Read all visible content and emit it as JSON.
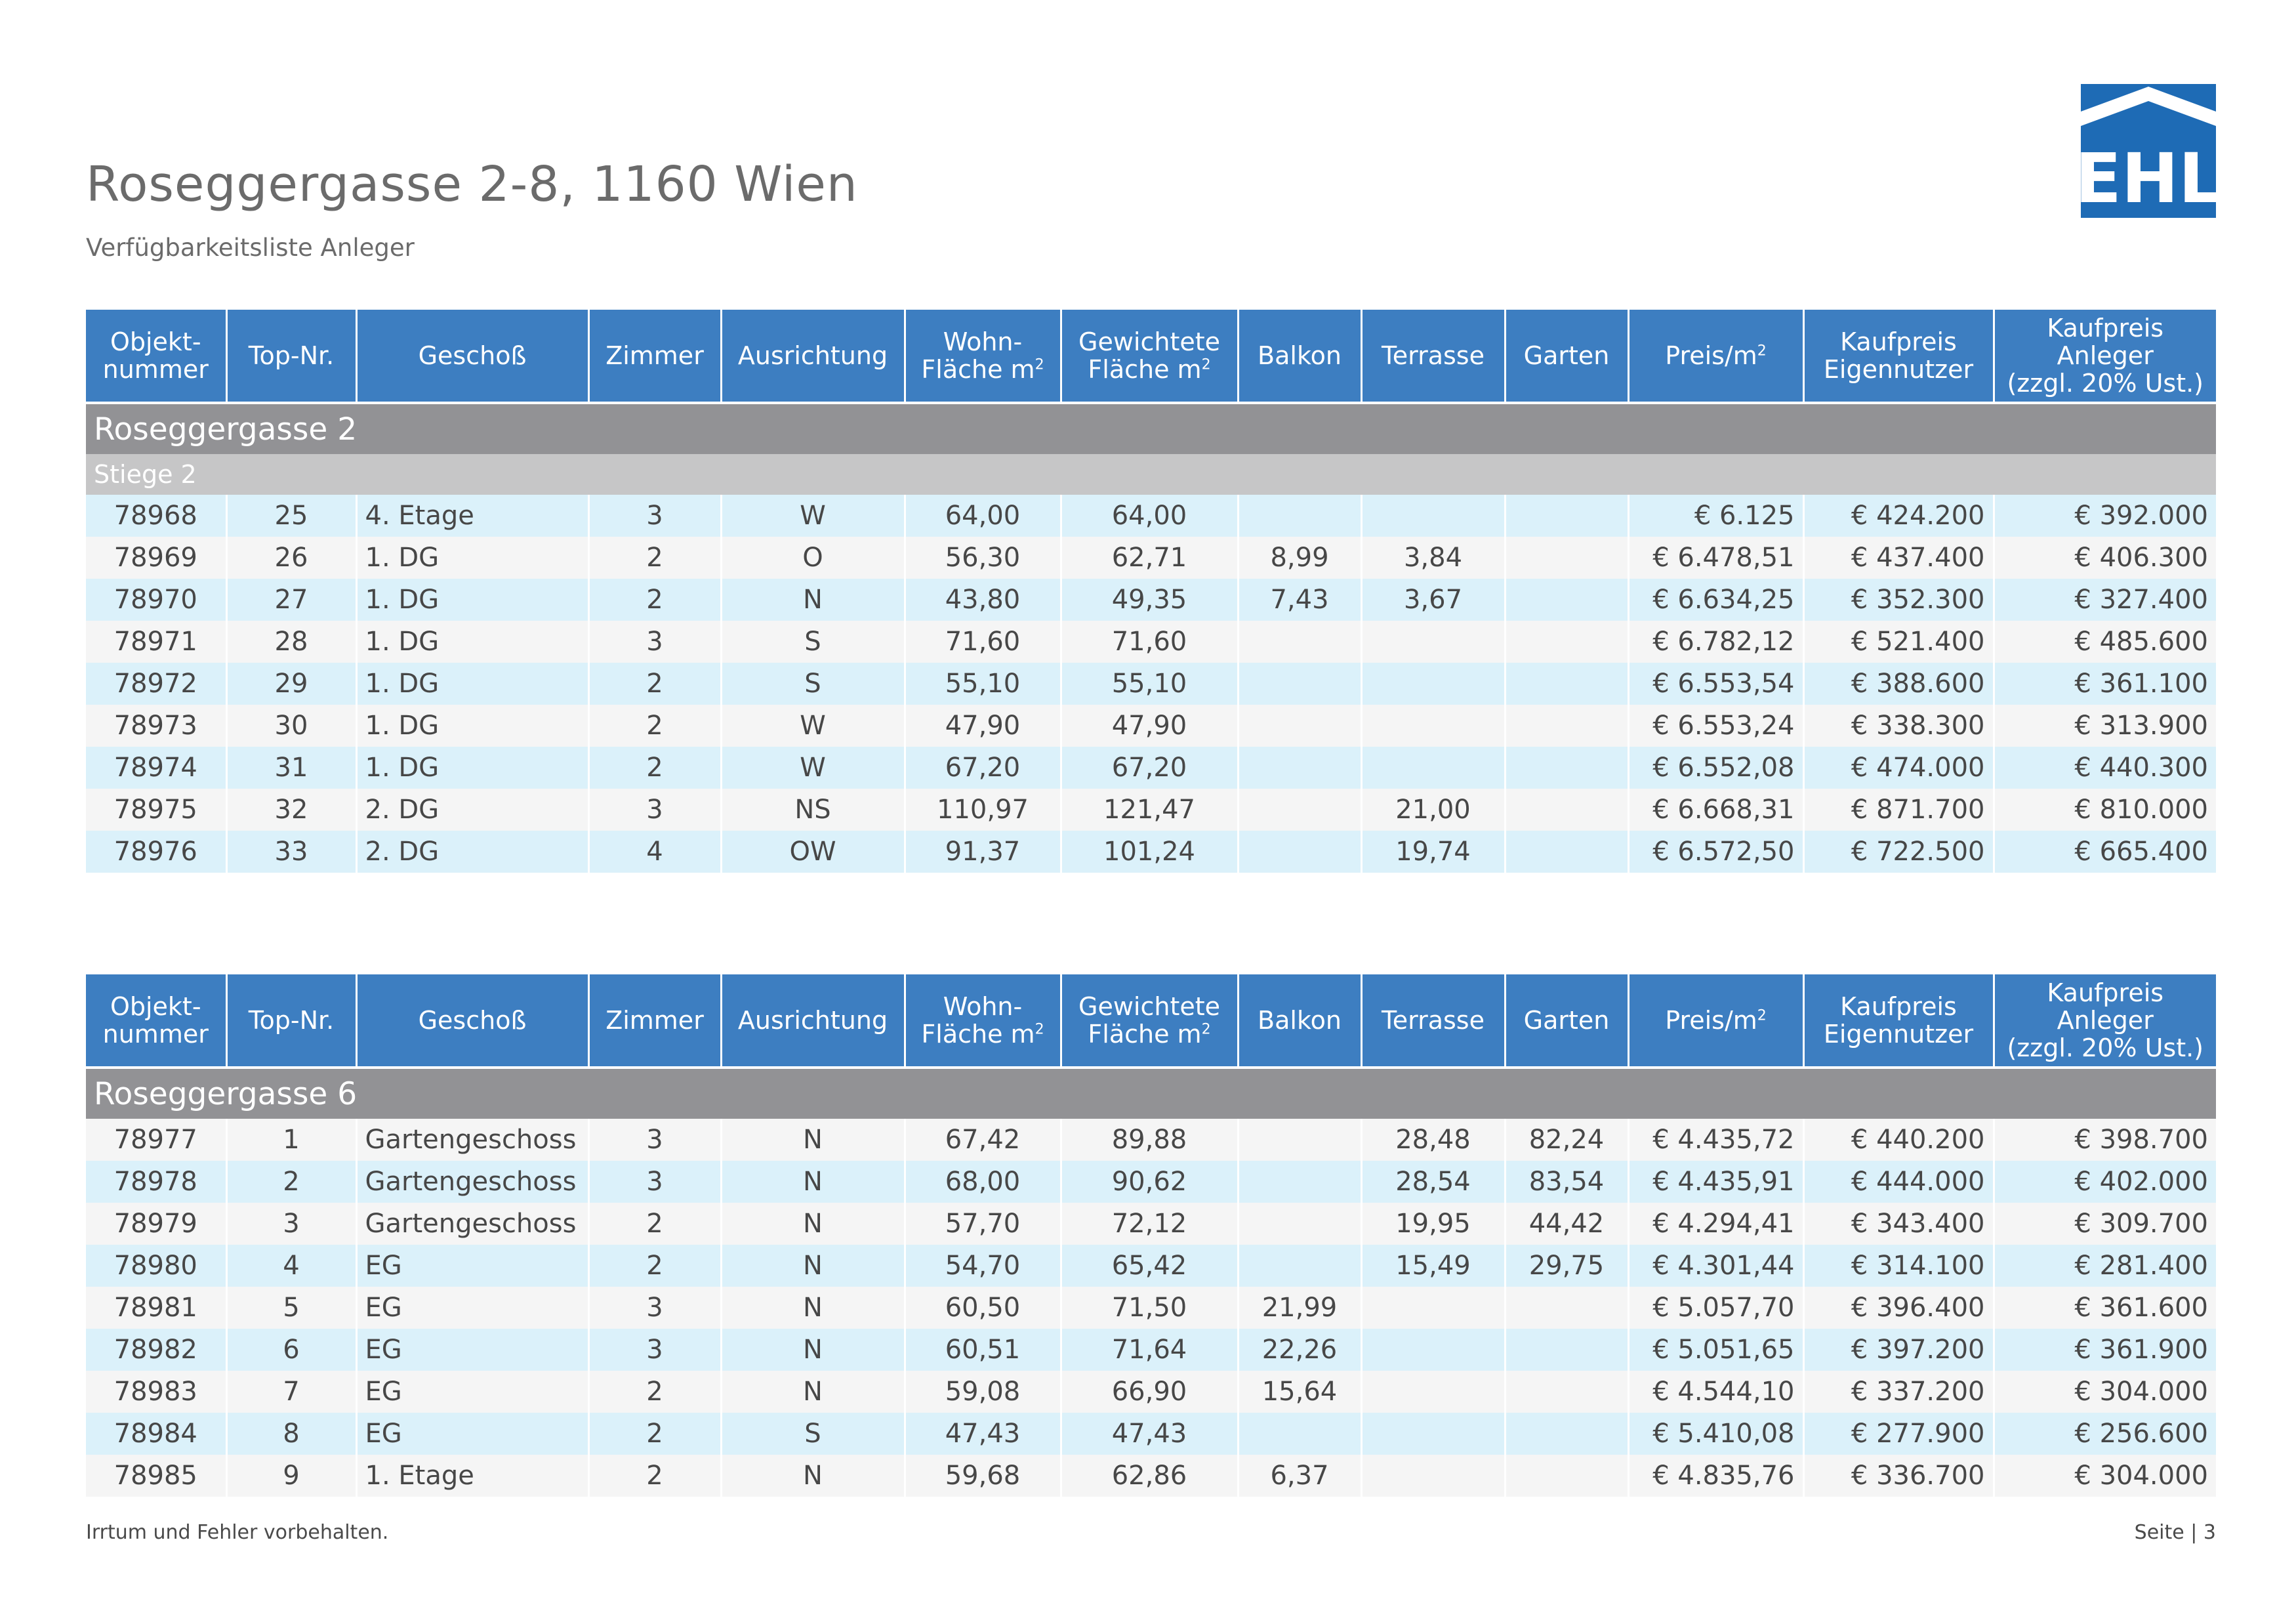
{
  "document": {
    "title": "Roseggergasse 2-8, 1160 Wien",
    "subtitle": "Verfügbarkeitsliste Anleger",
    "logo_text": "EHL",
    "brand_color": "#1e6bb5",
    "header_color": "#3d7ec1",
    "footer_note": "Irrtum und Fehler vorbehalten.",
    "page_label": "Seite | 3"
  },
  "columns": {
    "objekt_1": "Objekt-",
    "objekt_2": "nummer",
    "top": "Top-Nr.",
    "geschoss": "Geschoß",
    "zimmer": "Zimmer",
    "ausrichtung": "Ausrichtung",
    "wohn_1": "Wohn-",
    "wohn_2": "Fläche m",
    "gew_1": "Gewichtete",
    "gew_2": "Fläche m",
    "sq": "2",
    "balkon": "Balkon",
    "terrasse": "Terrasse",
    "garten": "Garten",
    "preis": "Preis/m",
    "kaufpreis_e1": "Kaufpreis",
    "kaufpreis_e2": "Eigennutzer",
    "kaufpreis_a1": "Kaufpreis",
    "kaufpreis_a2": "Anleger",
    "kaufpreis_a3": "(zzgl. 20% Ust.)"
  },
  "tables": [
    {
      "house": "Roseggergasse 2",
      "stair": "Stiege 2",
      "rows": [
        [
          "78968",
          "25",
          "4. Etage",
          "3",
          "W",
          "64,00",
          "64,00",
          "",
          "",
          "",
          "€ 6.125",
          "€ 424.200",
          "€ 392.000"
        ],
        [
          "78969",
          "26",
          "1. DG",
          "2",
          "O",
          "56,30",
          "62,71",
          "8,99",
          "3,84",
          "",
          "€ 6.478,51",
          "€ 437.400",
          "€ 406.300"
        ],
        [
          "78970",
          "27",
          "1. DG",
          "2",
          "N",
          "43,80",
          "49,35",
          "7,43",
          "3,67",
          "",
          "€ 6.634,25",
          "€ 352.300",
          "€ 327.400"
        ],
        [
          "78971",
          "28",
          "1. DG",
          "3",
          "S",
          "71,60",
          "71,60",
          "",
          "",
          "",
          "€ 6.782,12",
          "€ 521.400",
          "€ 485.600"
        ],
        [
          "78972",
          "29",
          "1. DG",
          "2",
          "S",
          "55,10",
          "55,10",
          "",
          "",
          "",
          "€ 6.553,54",
          "€ 388.600",
          "€ 361.100"
        ],
        [
          "78973",
          "30",
          "1. DG",
          "2",
          "W",
          "47,90",
          "47,90",
          "",
          "",
          "",
          "€ 6.553,24",
          "€ 338.300",
          "€ 313.900"
        ],
        [
          "78974",
          "31",
          "1. DG",
          "2",
          "W",
          "67,20",
          "67,20",
          "",
          "",
          "",
          "€ 6.552,08",
          "€ 474.000",
          "€ 440.300"
        ],
        [
          "78975",
          "32",
          "2. DG",
          "3",
          "NS",
          "110,97",
          "121,47",
          "",
          "21,00",
          "",
          "€ 6.668,31",
          "€ 871.700",
          "€ 810.000"
        ],
        [
          "78976",
          "33",
          "2. DG",
          "4",
          "OW",
          "91,37",
          "101,24",
          "",
          "19,74",
          "",
          "€ 6.572,50",
          "€ 722.500",
          "€ 665.400"
        ]
      ]
    },
    {
      "house": "Roseggergasse 6",
      "stair": "",
      "rows": [
        [
          "78977",
          "1",
          "Gartengeschoss",
          "3",
          "N",
          "67,42",
          "89,88",
          "",
          "28,48",
          "82,24",
          "€ 4.435,72",
          "€ 440.200",
          "€ 398.700"
        ],
        [
          "78978",
          "2",
          "Gartengeschoss",
          "3",
          "N",
          "68,00",
          "90,62",
          "",
          "28,54",
          "83,54",
          "€ 4.435,91",
          "€ 444.000",
          "€ 402.000"
        ],
        [
          "78979",
          "3",
          "Gartengeschoss",
          "2",
          "N",
          "57,70",
          "72,12",
          "",
          "19,95",
          "44,42",
          "€ 4.294,41",
          "€ 343.400",
          "€ 309.700"
        ],
        [
          "78980",
          "4",
          "EG",
          "2",
          "N",
          "54,70",
          "65,42",
          "",
          "15,49",
          "29,75",
          "€ 4.301,44",
          "€ 314.100",
          "€ 281.400"
        ],
        [
          "78981",
          "5",
          "EG",
          "3",
          "N",
          "60,50",
          "71,50",
          "21,99",
          "",
          "",
          "€ 5.057,70",
          "€ 396.400",
          "€ 361.600"
        ],
        [
          "78982",
          "6",
          "EG",
          "3",
          "N",
          "60,51",
          "71,64",
          "22,26",
          "",
          "",
          "€ 5.051,65",
          "€ 397.200",
          "€ 361.900"
        ],
        [
          "78983",
          "7",
          "EG",
          "2",
          "N",
          "59,08",
          "66,90",
          "15,64",
          "",
          "",
          "€ 4.544,10",
          "€ 337.200",
          "€ 304.000"
        ],
        [
          "78984",
          "8",
          "EG",
          "2",
          "S",
          "47,43",
          "47,43",
          "",
          "",
          "",
          "€ 5.410,08",
          "€ 277.900",
          "€ 256.600"
        ],
        [
          "78985",
          "9",
          "1. Etage",
          "2",
          "N",
          "59,68",
          "62,86",
          "6,37",
          "",
          "",
          "€ 4.835,76",
          "€ 336.700",
          "€ 304.000"
        ]
      ]
    }
  ]
}
